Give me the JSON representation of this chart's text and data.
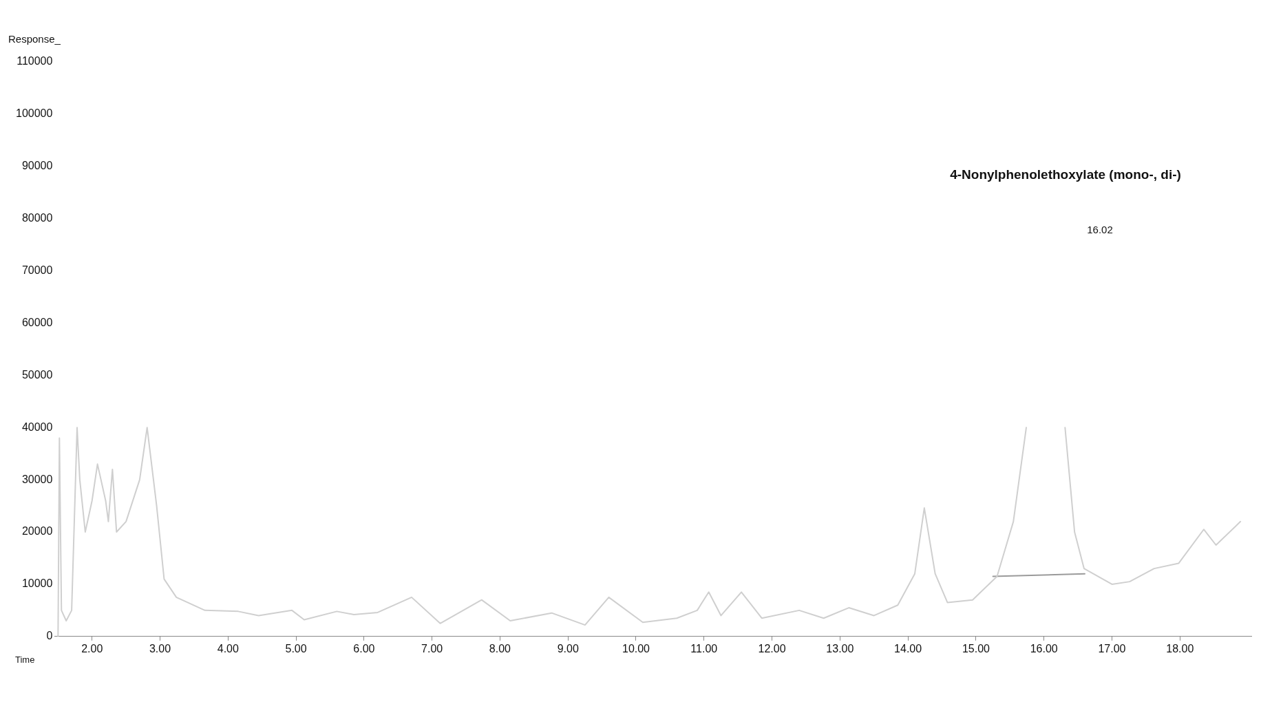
{
  "chart_data": {
    "type": "line",
    "xlabel": "Time",
    "ylabel": "Response_",
    "annotations": [
      "4-Nonylphenolethoxylate (mono-, di-)",
      "16.02"
    ],
    "xlim": [
      1.45,
      19.05
    ],
    "ylim": [
      0,
      110000
    ],
    "xticks": [
      {
        "value": 2,
        "label": "2.00"
      },
      {
        "value": 3,
        "label": "3.00"
      },
      {
        "value": 4,
        "label": "4.00"
      },
      {
        "value": 5,
        "label": "5.00"
      },
      {
        "value": 6,
        "label": "6.00"
      },
      {
        "value": 7,
        "label": "7.00"
      },
      {
        "value": 8,
        "label": "8.00"
      },
      {
        "value": 9,
        "label": "9.00"
      },
      {
        "value": 10,
        "label": "10.00"
      },
      {
        "value": 11,
        "label": "11.00"
      },
      {
        "value": 12,
        "label": "12.00"
      },
      {
        "value": 13,
        "label": "13.00"
      },
      {
        "value": 14,
        "label": "14.00"
      },
      {
        "value": 15,
        "label": "15.00"
      },
      {
        "value": 16,
        "label": "16.00"
      },
      {
        "value": 17,
        "label": "17.00"
      },
      {
        "value": 18,
        "label": "18.00"
      }
    ],
    "yticks": [
      0,
      10000,
      20000,
      30000,
      40000,
      50000,
      60000,
      70000,
      80000,
      90000,
      100000,
      110000
    ],
    "grid": false,
    "legend": false,
    "marker": "none",
    "line_style": "solid",
    "series": [
      {
        "color": "#cfcfcf",
        "x": [
          1.5,
          1.52,
          1.55,
          1.62,
          1.7,
          1.78,
          1.82,
          1.9,
          2.0,
          2.08,
          2.2,
          2.24,
          2.3,
          2.36,
          2.5,
          2.7,
          2.81,
          2.95,
          3.06,
          3.24,
          3.66,
          4.15,
          4.45,
          4.94,
          5.12,
          5.6,
          5.85,
          6.2,
          6.7,
          7.12,
          7.73,
          8.15,
          8.76,
          9.25,
          9.6,
          10.1,
          10.6,
          10.9,
          11.07,
          11.25,
          11.55,
          11.85,
          12.4,
          12.76,
          13.13,
          13.5,
          13.85,
          14.1,
          14.24,
          14.4,
          14.58,
          14.95,
          15.31,
          15.55,
          15.74,
          15.76,
          16.29,
          16.31,
          16.45,
          16.59,
          17.0,
          17.26,
          17.62,
          17.98,
          18.35,
          18.53,
          18.89
        ],
        "values": [
          0,
          38000,
          5000,
          3000,
          5000,
          40000,
          30000,
          20000,
          26000,
          33000,
          26000,
          22000,
          32000,
          20000,
          22000,
          30000,
          40000,
          25000,
          11000,
          7500,
          5000,
          4800,
          4000,
          5000,
          3200,
          4800,
          4200,
          4600,
          7500,
          2500,
          7000,
          3000,
          4500,
          2200,
          7500,
          2700,
          3500,
          5000,
          8500,
          4000,
          8500,
          3500,
          5000,
          3500,
          5500,
          4000,
          6000,
          12000,
          24600,
          12000,
          6500,
          7000,
          11500,
          22000,
          40000,
          null,
          null,
          40000,
          20000,
          13000,
          10000,
          10500,
          13000,
          14000,
          20500,
          17500,
          22000
        ]
      },
      {
        "color": "#9a9a9a",
        "x": [
          15.25,
          16.6
        ],
        "values": [
          11500,
          12000
        ]
      }
    ]
  }
}
